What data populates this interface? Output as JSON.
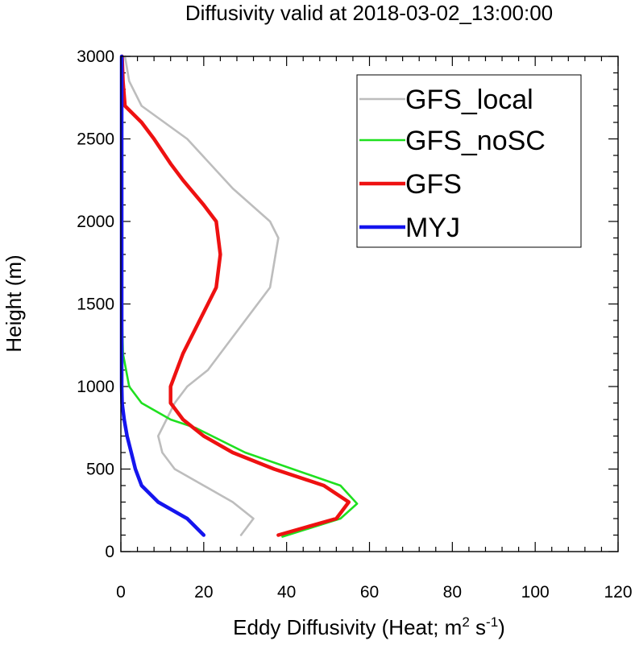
{
  "chart_data": {
    "type": "line",
    "title": "Diffusivity valid at 2018-03-02_13:00:00",
    "xlabel": "Eddy Diffusivity (Heat; m",
    "xlabel_sup1": "2",
    "xlabel_mid": " s",
    "xlabel_sup2": "-1",
    "xlabel_end": ")",
    "ylabel": "Height (m)",
    "xlim": [
      0,
      120
    ],
    "ylim": [
      0,
      3000
    ],
    "xticks": [
      "0",
      "20",
      "40",
      "60",
      "80",
      "100",
      "120"
    ],
    "yticks": [
      "0",
      "500",
      "1000",
      "1500",
      "2000",
      "2500",
      "3000"
    ],
    "legend_position": "top-right",
    "series": [
      {
        "name": "GFS_local",
        "color": "#bdbdbd",
        "points": [
          [
            29,
            100
          ],
          [
            32,
            200
          ],
          [
            27,
            300
          ],
          [
            20,
            400
          ],
          [
            13,
            500
          ],
          [
            10,
            600
          ],
          [
            9,
            700
          ],
          [
            11,
            800
          ],
          [
            13,
            900
          ],
          [
            16,
            1000
          ],
          [
            21,
            1100
          ],
          [
            27,
            1300
          ],
          [
            36,
            1600
          ],
          [
            38,
            1900
          ],
          [
            36,
            2000
          ],
          [
            27,
            2200
          ],
          [
            16,
            2500
          ],
          [
            5,
            2700
          ],
          [
            2,
            2850
          ],
          [
            1,
            3000
          ]
        ]
      },
      {
        "name": "GFS_noSC",
        "color": "#1fe01f",
        "points": [
          [
            39,
            90
          ],
          [
            53,
            200
          ],
          [
            57,
            290
          ],
          [
            53,
            400
          ],
          [
            30,
            600
          ],
          [
            18,
            750
          ],
          [
            12,
            800
          ],
          [
            5,
            900
          ],
          [
            2,
            1000
          ],
          [
            0.5,
            1200
          ],
          [
            0.2,
            1500
          ],
          [
            0.2,
            2000
          ],
          [
            0.2,
            2500
          ],
          [
            0.2,
            3000
          ]
        ]
      },
      {
        "name": "GFS",
        "color": "#ee1111",
        "points": [
          [
            38,
            100
          ],
          [
            52,
            200
          ],
          [
            55,
            300
          ],
          [
            49,
            400
          ],
          [
            37,
            500
          ],
          [
            27,
            600
          ],
          [
            20,
            700
          ],
          [
            15,
            800
          ],
          [
            12,
            900
          ],
          [
            12,
            1000
          ],
          [
            15,
            1200
          ],
          [
            19,
            1400
          ],
          [
            23,
            1600
          ],
          [
            24,
            1800
          ],
          [
            23,
            2000
          ],
          [
            20,
            2100
          ],
          [
            15,
            2250
          ],
          [
            12,
            2350
          ],
          [
            8,
            2500
          ],
          [
            5,
            2600
          ],
          [
            1,
            2700
          ],
          [
            0.5,
            2850
          ],
          [
            0.3,
            3000
          ]
        ]
      },
      {
        "name": "MYJ",
        "color": "#1515ee",
        "points": [
          [
            20,
            100
          ],
          [
            16,
            200
          ],
          [
            9,
            300
          ],
          [
            5,
            400
          ],
          [
            3.5,
            500
          ],
          [
            2.5,
            600
          ],
          [
            1.5,
            700
          ],
          [
            0.8,
            800
          ],
          [
            0.3,
            900
          ],
          [
            0.2,
            1000
          ],
          [
            0.2,
            1500
          ],
          [
            0.2,
            2000
          ],
          [
            0.2,
            2500
          ],
          [
            0.2,
            3000
          ]
        ]
      }
    ]
  }
}
